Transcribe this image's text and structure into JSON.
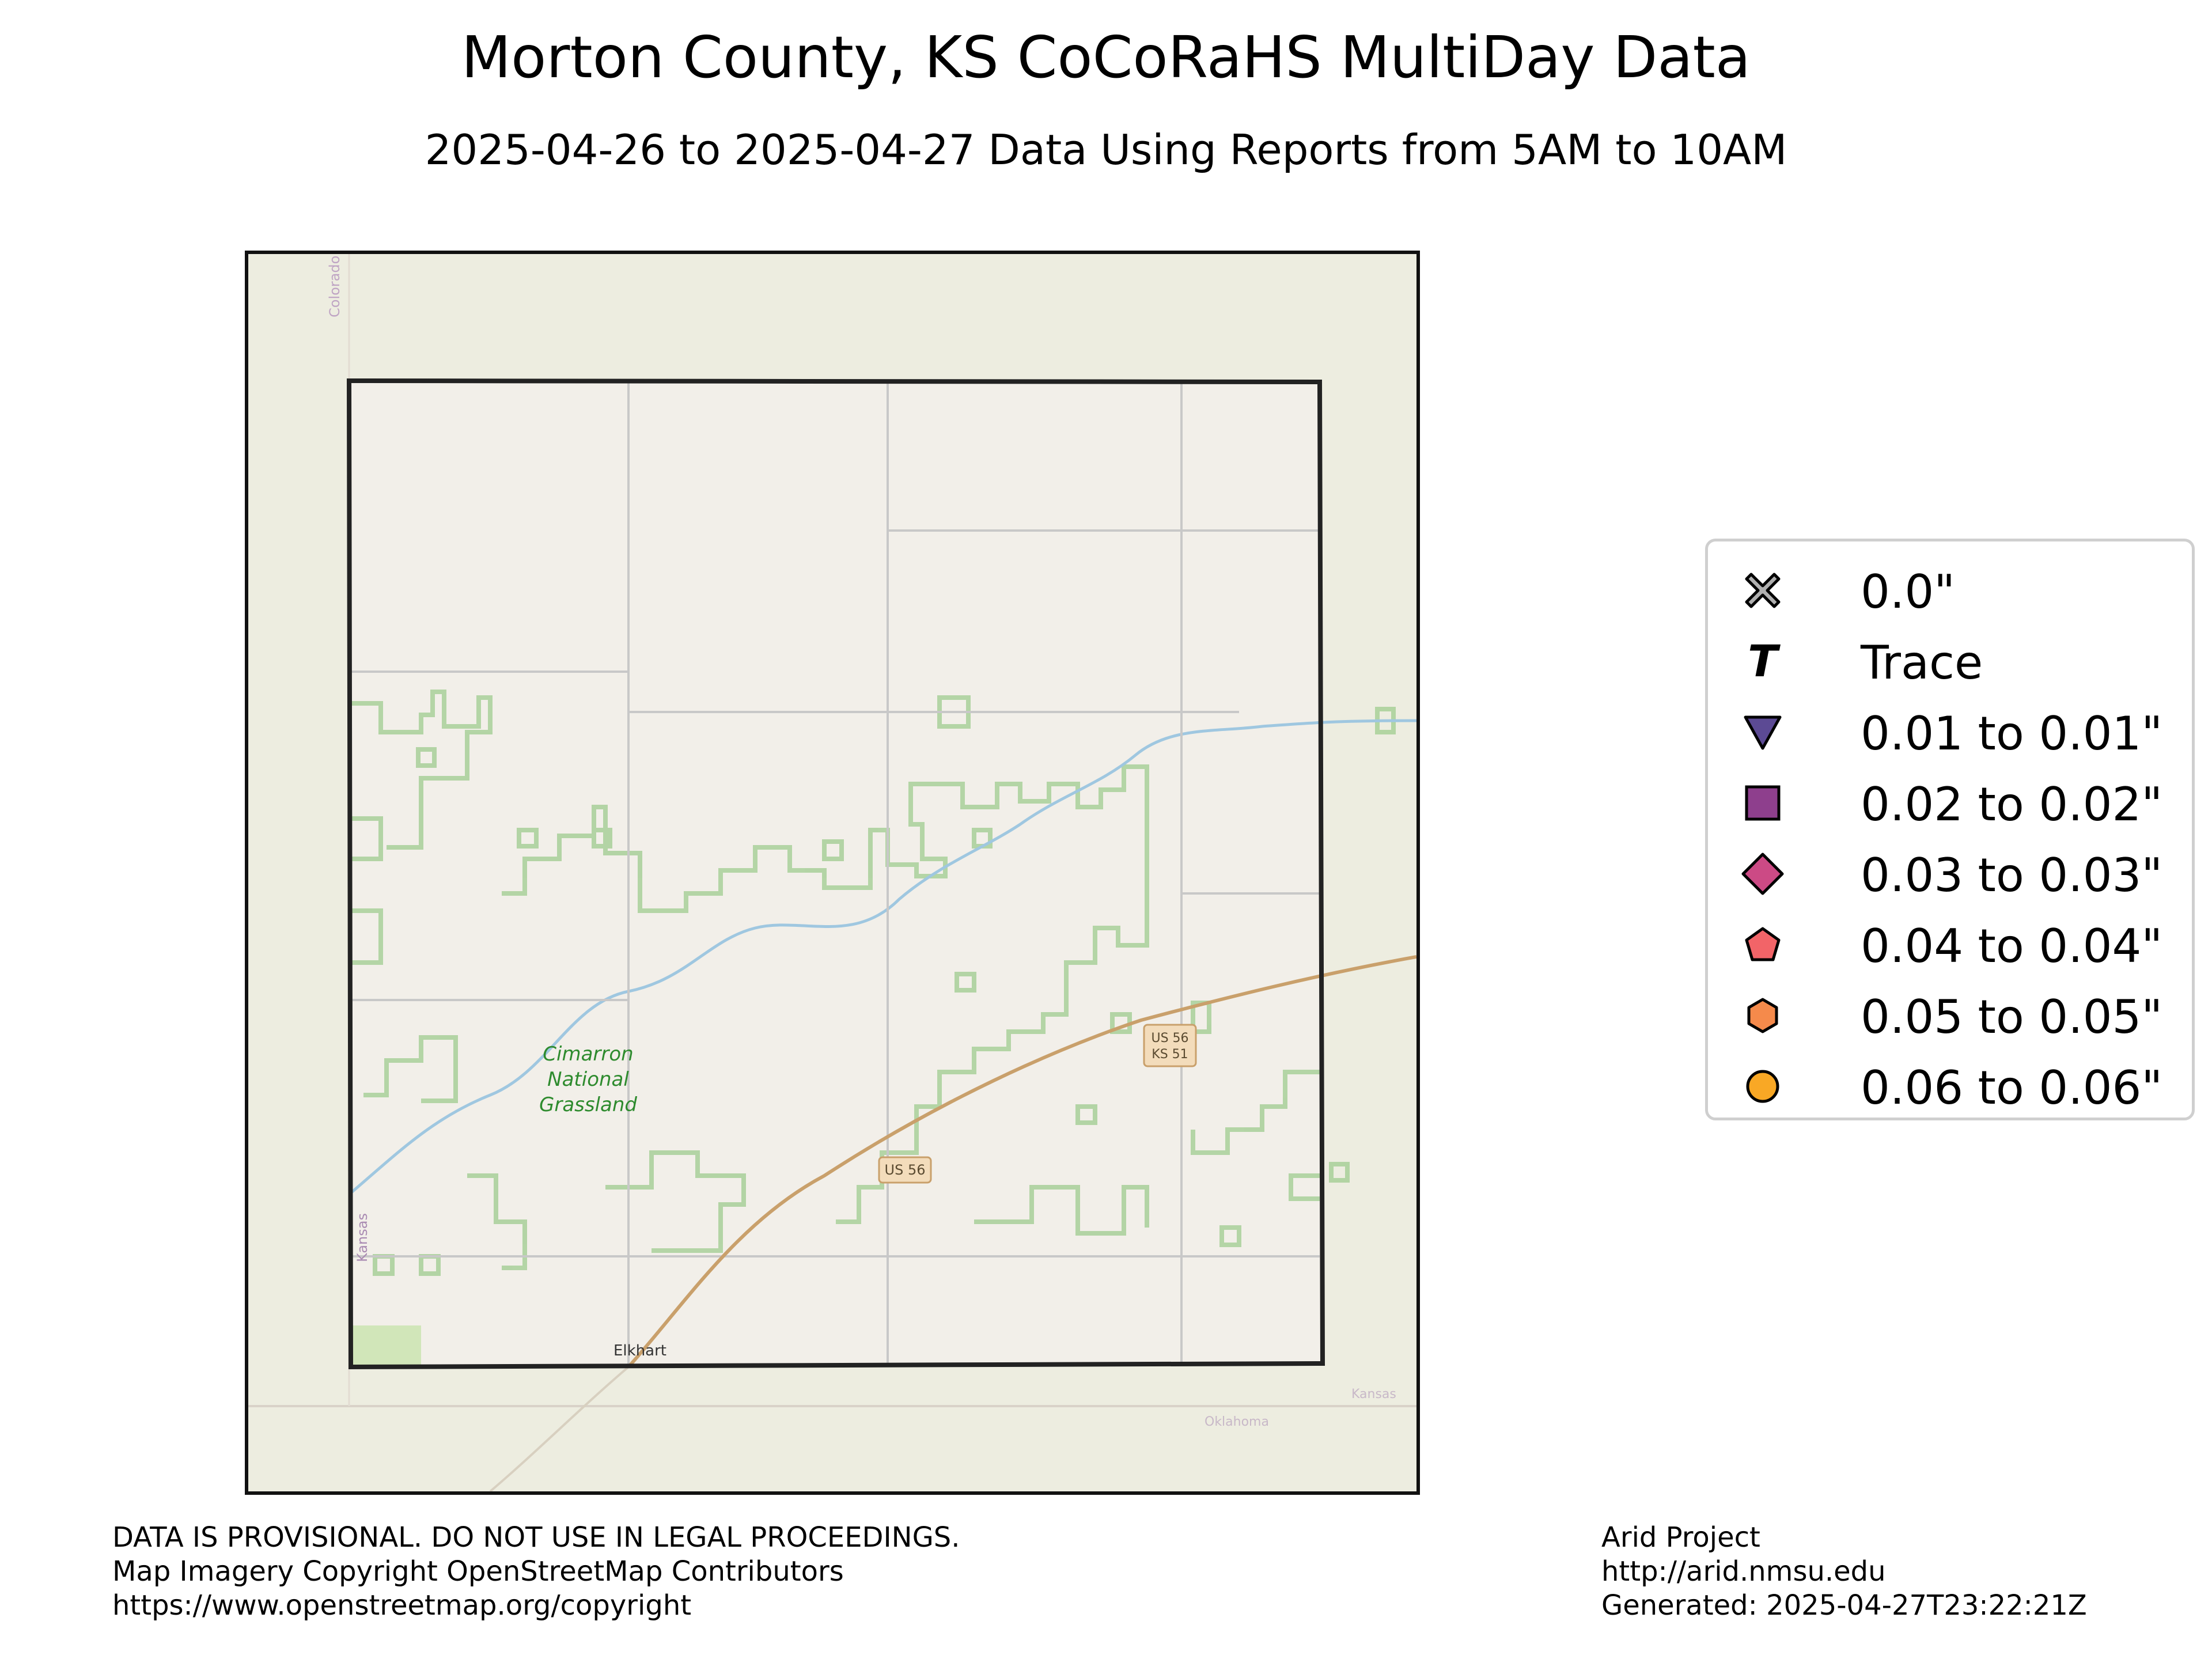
{
  "title": "Morton County, KS CoCoRaHS MultiDay Data",
  "subtitle": "2025-04-26 to 2025-04-27 Data Using Reports from 5AM to 10AM",
  "map": {
    "labels": {
      "colorado": "Colorado",
      "kansas_west": "Kansas",
      "kansas_east": "Kansas",
      "oklahoma": "Oklahoma",
      "grassland_1": "Cimarron",
      "grassland_2": "National",
      "grassland_3": "Grassland",
      "town": "Elkhart",
      "shield_us56_a": "US 56",
      "shield_us56_b": "US 56",
      "shield_ks51": "KS 51"
    },
    "colors": {
      "background": "#edede0",
      "county_fill": "#f2efe9",
      "county_border": "#222222",
      "grassland": "#9fcc8f",
      "river": "#9fc7e0",
      "highway": "#c9a06b",
      "road": "#c8c8c8"
    }
  },
  "legend": {
    "items": [
      {
        "label": "0.0\"",
        "symbol": "x-icon",
        "color": "#b0b0b0"
      },
      {
        "label": "Trace",
        "symbol": "t-icon",
        "color": "#000000"
      },
      {
        "label": "0.01 to 0.01\"",
        "symbol": "triangle-down-icon",
        "color": "#5c4a94"
      },
      {
        "label": "0.02 to 0.02\"",
        "symbol": "square-icon",
        "color": "#8e3f8d"
      },
      {
        "label": "0.03 to 0.03\"",
        "symbol": "diamond-icon",
        "color": "#cc4a85"
      },
      {
        "label": "0.04 to 0.04\"",
        "symbol": "pentagon-icon",
        "color": "#f26468"
      },
      {
        "label": "0.05 to 0.05\"",
        "symbol": "hexagon-icon",
        "color": "#f58a4b"
      },
      {
        "label": "0.06 to 0.06\"",
        "symbol": "circle-icon",
        "color": "#f9a825"
      }
    ]
  },
  "footer": {
    "left": [
      "DATA IS PROVISIONAL. DO NOT USE IN LEGAL PROCEEDINGS.",
      "Map Imagery Copyright OpenStreetMap Contributors",
      "https://www.openstreetmap.org/copyright"
    ],
    "right": [
      "Arid Project",
      "http://arid.nmsu.edu",
      "Generated: 2025-04-27T23:22:21Z"
    ]
  }
}
